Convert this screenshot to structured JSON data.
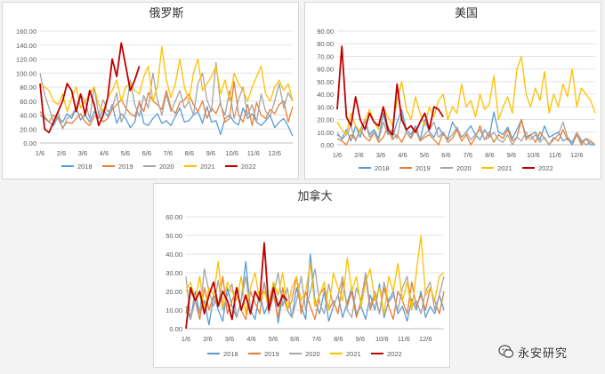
{
  "colors": {
    "2018": "#5b9bd5",
    "2019": "#ed7d31",
    "2020": "#a5a5a5",
    "2021": "#ffc000",
    "2022": "#c00000"
  },
  "watermark": {
    "text": "永安研究",
    "icon": "wechat-bubble-icon"
  },
  "chart_data": [
    {
      "type": "line",
      "title": "俄罗斯",
      "ylim": [
        0,
        160
      ],
      "yticks": [
        "0.00",
        "20.00",
        "40.00",
        "60.00",
        "80.00",
        "100.00",
        "120.00",
        "140.00",
        "160.00"
      ],
      "xticks": [
        "1/6",
        "2/6",
        "3/6",
        "4/6",
        "5/6",
        "6/6",
        "7/6",
        "8/6",
        "9/6",
        "10/6",
        "11/6",
        "12/6"
      ],
      "grid": true,
      "legend": "bottom",
      "series": [
        {
          "name": "2018",
          "values": [
            40,
            35,
            30,
            25,
            38,
            30,
            42,
            35,
            50,
            33,
            40,
            30,
            45,
            35,
            48,
            38,
            55,
            28,
            42,
            35,
            22,
            30,
            60,
            28,
            25,
            35,
            42,
            28,
            32,
            25,
            38,
            50,
            30,
            32,
            40,
            45,
            28,
            52,
            30,
            32,
            12,
            35,
            40,
            30,
            26,
            50,
            35,
            42,
            30,
            25,
            32,
            40,
            22,
            30,
            35,
            24,
            10
          ]
        },
        {
          "name": "2019",
          "values": [
            45,
            38,
            30,
            40,
            35,
            22,
            30,
            28,
            35,
            42,
            30,
            25,
            38,
            40,
            30,
            35,
            48,
            55,
            62,
            50,
            42,
            38,
            58,
            45,
            72,
            60,
            55,
            48,
            75,
            50,
            42,
            58,
            62,
            70,
            55,
            45,
            60,
            35,
            50,
            42,
            58,
            30,
            35,
            88,
            40,
            30,
            55,
            25,
            58,
            40,
            35,
            48,
            42,
            55,
            60,
            30,
            52
          ]
        },
        {
          "name": "2020",
          "values": [
            100,
            70,
            50,
            30,
            45,
            20,
            35,
            40,
            50,
            70,
            60,
            35,
            80,
            40,
            62,
            45,
            50,
            72,
            30,
            45,
            90,
            55,
            38,
            68,
            50,
            100,
            62,
            40,
            70,
            45,
            60,
            75,
            50,
            60,
            40,
            85,
            100,
            62,
            45,
            115,
            55,
            40,
            75,
            35,
            62,
            80,
            40,
            55,
            30,
            70,
            45,
            38,
            60,
            85,
            50,
            72,
            60
          ]
        },
        {
          "name": "2021",
          "values": [
            85,
            80,
            75,
            60,
            55,
            70,
            45,
            65,
            80,
            50,
            60,
            70,
            80,
            55,
            45,
            65,
            75,
            90,
            60,
            80,
            85,
            75,
            70,
            95,
            110,
            60,
            80,
            138,
            90,
            65,
            85,
            120,
            80,
            60,
            100,
            120,
            75,
            85,
            95,
            110,
            70,
            90,
            60,
            100,
            85,
            75,
            60,
            80,
            95,
            110,
            70,
            60,
            80,
            90,
            75,
            85,
            60
          ]
        },
        {
          "name": "2022",
          "values": [
            85,
            20,
            15,
            30,
            45,
            60,
            85,
            75,
            45,
            70,
            40,
            75,
            55,
            25,
            40,
            65,
            120,
            95,
            143,
            110,
            75,
            90,
            110
          ]
        }
      ]
    },
    {
      "type": "line",
      "title": "美国",
      "ylim": [
        0,
        90
      ],
      "yticks": [
        "0.00",
        "10.00",
        "20.00",
        "30.00",
        "40.00",
        "50.00",
        "60.00",
        "70.00",
        "80.00",
        "90.00"
      ],
      "xticks": [
        "1/6",
        "2/6",
        "3/6",
        "4/6",
        "5/6",
        "6/6",
        "7/6",
        "8/6",
        "9/6",
        "10/6",
        "11/6",
        "12/6"
      ],
      "grid": true,
      "legend": "bottom",
      "series": [
        {
          "name": "2018",
          "values": [
            8,
            5,
            12,
            3,
            15,
            6,
            20,
            8,
            12,
            5,
            25,
            10,
            6,
            18,
            28,
            12,
            8,
            15,
            4,
            20,
            10,
            6,
            14,
            8,
            5,
            18,
            12,
            6,
            10,
            15,
            8,
            4,
            12,
            6,
            26,
            10,
            8,
            14,
            5,
            12,
            20,
            6,
            8,
            10,
            4,
            15,
            6,
            8,
            10,
            3,
            5,
            0,
            8,
            2,
            5,
            0,
            0
          ]
        },
        {
          "name": "2019",
          "values": [
            5,
            3,
            0,
            8,
            4,
            12,
            6,
            3,
            10,
            2,
            6,
            15,
            4,
            8,
            2,
            10,
            5,
            12,
            3,
            6,
            8,
            4,
            0,
            10,
            2,
            5,
            12,
            3,
            8,
            0,
            6,
            15,
            4,
            10,
            2,
            8,
            5,
            12,
            3,
            6,
            20,
            4,
            8,
            2,
            10,
            5,
            0,
            6,
            3,
            12,
            4,
            2,
            8,
            0,
            5,
            3,
            0
          ]
        },
        {
          "name": "2020",
          "values": [
            10,
            4,
            8,
            15,
            3,
            12,
            20,
            6,
            10,
            4,
            18,
            8,
            12,
            5,
            24,
            10,
            6,
            14,
            4,
            8,
            12,
            18,
            6,
            10,
            4,
            8,
            14,
            6,
            10,
            4,
            8,
            12,
            4,
            6,
            10,
            4,
            2,
            8,
            0,
            6,
            3,
            10,
            4,
            8,
            2,
            6,
            0,
            4,
            8,
            18,
            6,
            2,
            10,
            4,
            0,
            2,
            0
          ]
        },
        {
          "name": "2021",
          "values": [
            18,
            12,
            8,
            25,
            15,
            10,
            20,
            28,
            18,
            12,
            30,
            22,
            15,
            35,
            50,
            28,
            20,
            38,
            25,
            15,
            30,
            22,
            35,
            40,
            20,
            30,
            25,
            48,
            30,
            35,
            22,
            40,
            28,
            32,
            55,
            20,
            30,
            38,
            25,
            60,
            70,
            40,
            30,
            45,
            35,
            58,
            25,
            40,
            30,
            48,
            38,
            60,
            30,
            45,
            40,
            35,
            25
          ]
        },
        {
          "name": "2022",
          "values": [
            28,
            78,
            22,
            15,
            38,
            20,
            12,
            25,
            18,
            15,
            30,
            12,
            8,
            48,
            20,
            12,
            15,
            10,
            18,
            25,
            12,
            30,
            28,
            22
          ]
        }
      ]
    },
    {
      "type": "line",
      "title": "加拿大",
      "ylim": [
        0,
        60
      ],
      "yticks": [
        "0.00",
        "10.00",
        "20.00",
        "30.00",
        "40.00",
        "50.00",
        "60.00"
      ],
      "xticks": [
        "1/6",
        "2/6",
        "3/6",
        "4/6",
        "5/6",
        "6/6",
        "7/6",
        "8/6",
        "9/6",
        "10/6",
        "11/6",
        "12/6"
      ],
      "grid": true,
      "legend": "bottom",
      "series": [
        {
          "name": "2018",
          "values": [
            12,
            5,
            20,
            8,
            15,
            2,
            18,
            10,
            4,
            22,
            12,
            6,
            15,
            36,
            10,
            5,
            20,
            8,
            14,
            25,
            3,
            18,
            10,
            6,
            22,
            12,
            5,
            40,
            15,
            8,
            20,
            4,
            12,
            18,
            6,
            14,
            22,
            8,
            12,
            5,
            18,
            10,
            24,
            6,
            15,
            20,
            8,
            12,
            4,
            16,
            10,
            20,
            6,
            12,
            8,
            18,
            10
          ]
        },
        {
          "name": "2019",
          "values": [
            8,
            20,
            15,
            5,
            22,
            10,
            18,
            12,
            28,
            8,
            15,
            22,
            10,
            5,
            20,
            14,
            8,
            25,
            12,
            18,
            6,
            22,
            10,
            15,
            28,
            8,
            20,
            12,
            5,
            18,
            22,
            10,
            15,
            8,
            25,
            12,
            20,
            6,
            15,
            28,
            10,
            18,
            8,
            22,
            12,
            5,
            20,
            15,
            8,
            25,
            12,
            18,
            10,
            22,
            15,
            8,
            20
          ]
        },
        {
          "name": "2020",
          "values": [
            28,
            5,
            15,
            8,
            32,
            20,
            12,
            26,
            10,
            18,
            24,
            6,
            15,
            28,
            10,
            20,
            14,
            25,
            8,
            18,
            30,
            12,
            22,
            6,
            15,
            28,
            10,
            20,
            32,
            14,
            8,
            24,
            12,
            18,
            28,
            10,
            6,
            22,
            15,
            30,
            12,
            20,
            8,
            25,
            14,
            18,
            10,
            22,
            28,
            12,
            15,
            8,
            20,
            25,
            10,
            18,
            28
          ]
        },
        {
          "name": "2021",
          "values": [
            20,
            25,
            15,
            28,
            10,
            22,
            18,
            36,
            12,
            25,
            20,
            15,
            28,
            8,
            22,
            30,
            15,
            20,
            12,
            25,
            18,
            30,
            10,
            22,
            28,
            15,
            20,
            35,
            12,
            18,
            25,
            10,
            30,
            22,
            15,
            38,
            20,
            28,
            12,
            25,
            32,
            15,
            22,
            8,
            28,
            20,
            35,
            15,
            25,
            10,
            30,
            50,
            18,
            22,
            15,
            28,
            30
          ]
        },
        {
          "name": "2022",
          "values": [
            0,
            22,
            15,
            20,
            8,
            18,
            25,
            12,
            20,
            15,
            5,
            22,
            10,
            18,
            8,
            20,
            15,
            46,
            10,
            22,
            12,
            18,
            15
          ]
        }
      ]
    }
  ]
}
